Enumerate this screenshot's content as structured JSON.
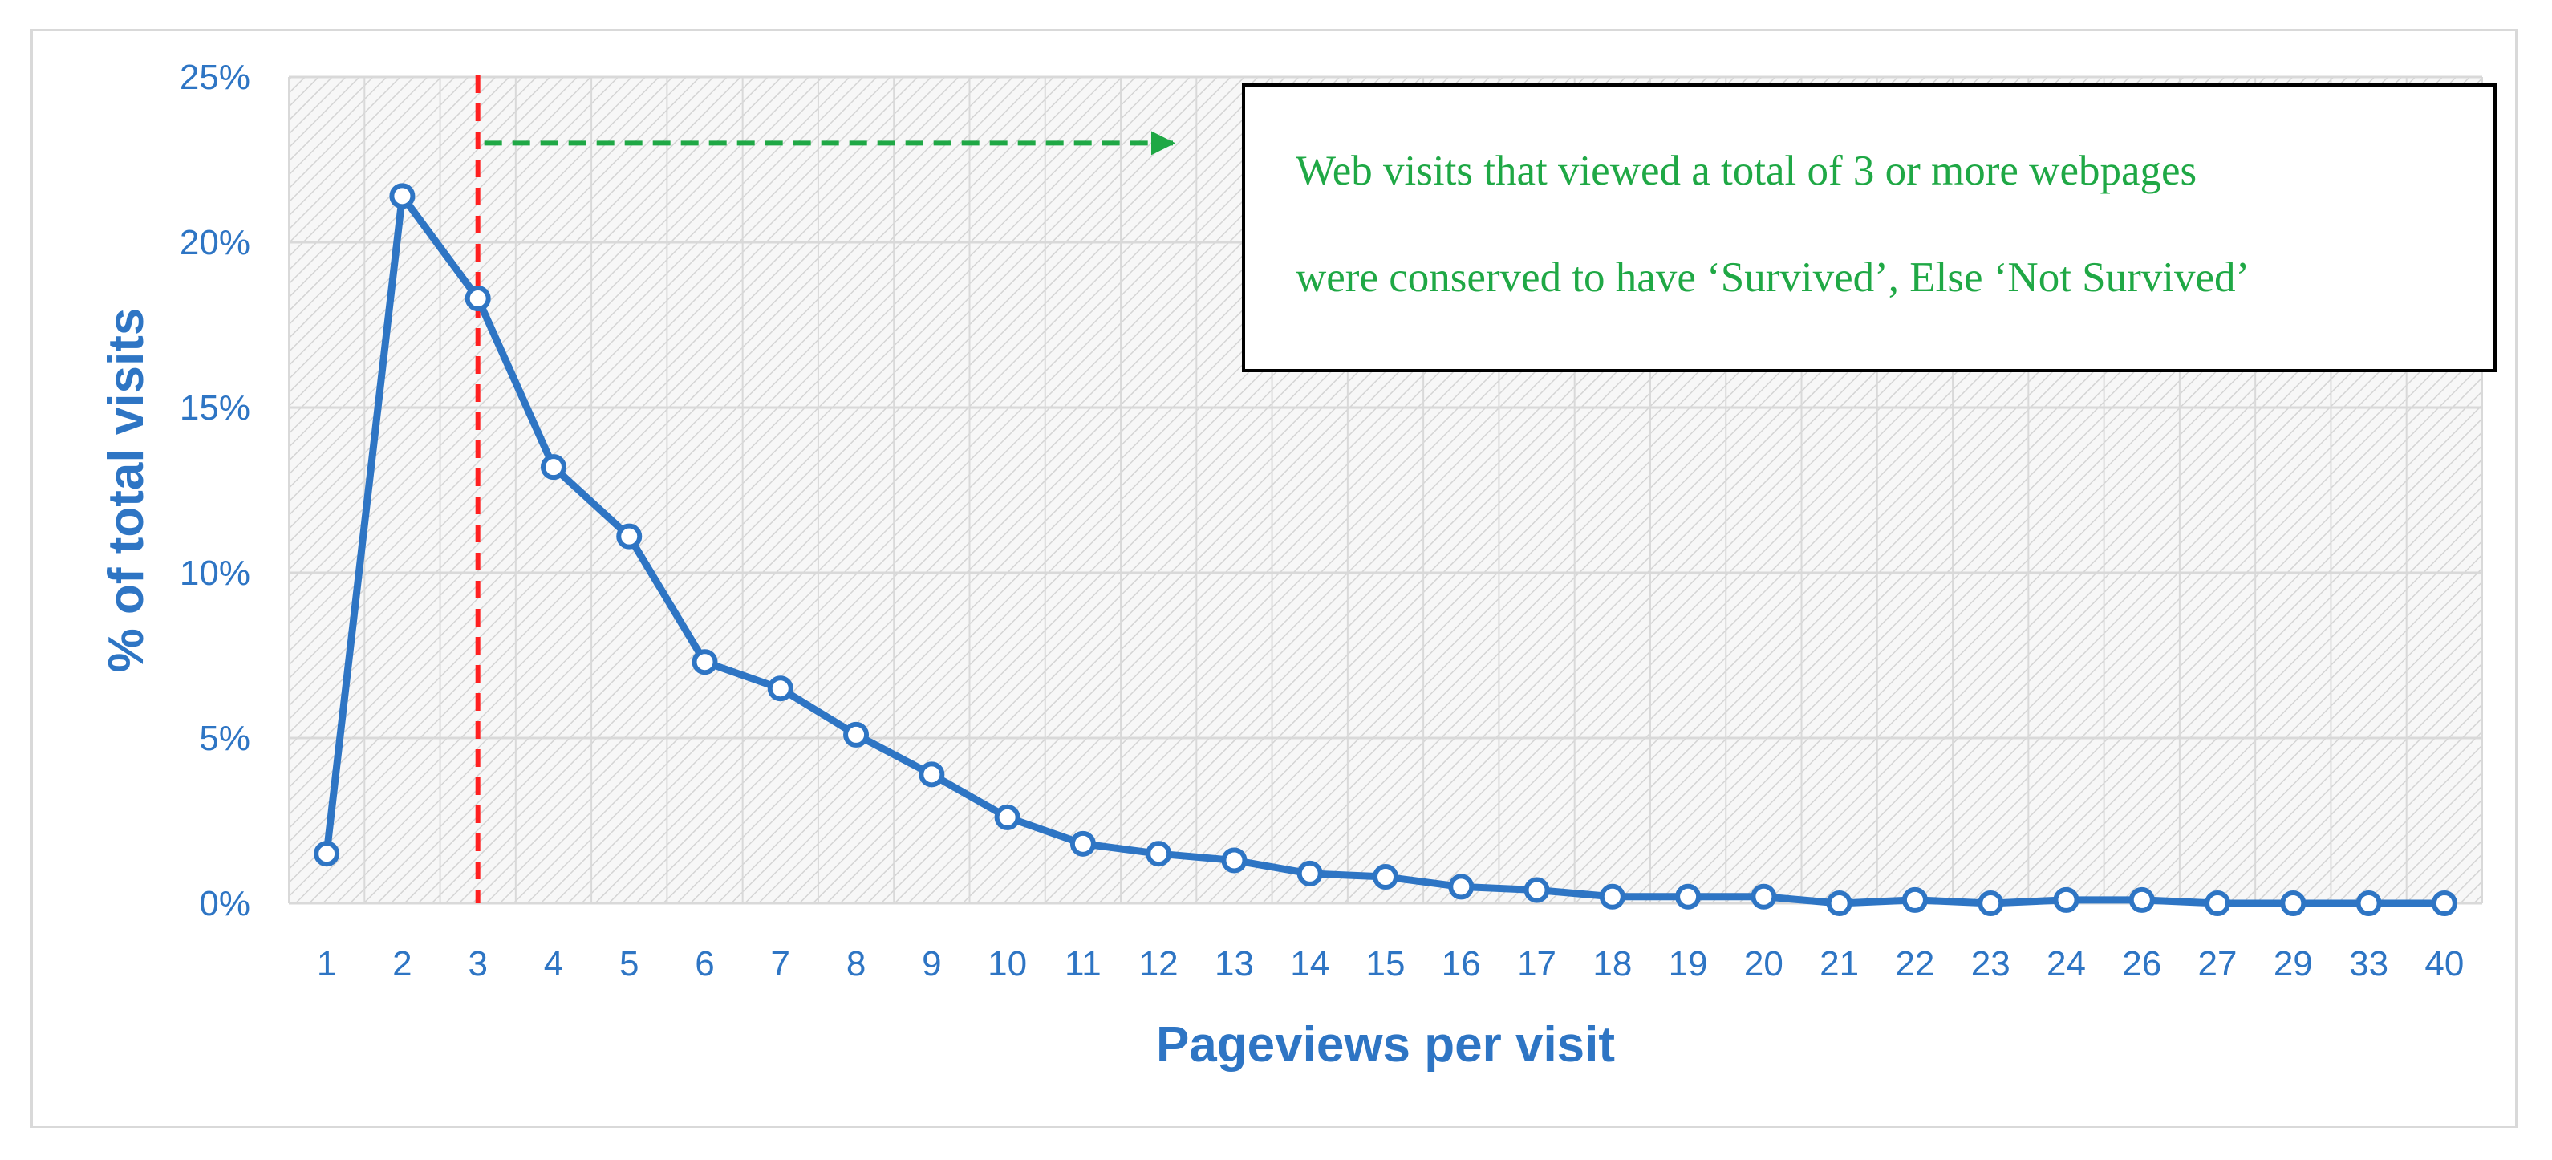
{
  "chart_data": {
    "type": "line",
    "title": "",
    "xlabel": "Pageviews per visit",
    "ylabel": "% of total visits",
    "categories": [
      "1",
      "2",
      "3",
      "4",
      "5",
      "6",
      "7",
      "8",
      "9",
      "10",
      "11",
      "12",
      "13",
      "14",
      "15",
      "16",
      "17",
      "18",
      "19",
      "20",
      "21",
      "22",
      "23",
      "24",
      "26",
      "27",
      "29",
      "33",
      "40"
    ],
    "series": [
      {
        "values": [
          1.5,
          21.4,
          18.3,
          13.2,
          11.1,
          7.3,
          6.5,
          5.1,
          3.9,
          2.6,
          1.8,
          1.5,
          1.3,
          0.9,
          0.8,
          0.5,
          0.4,
          0.2,
          0.2,
          0.2,
          0.0,
          0.1,
          0.0,
          0.1,
          0.1,
          0.0,
          0.0,
          0.0,
          0.0
        ]
      }
    ],
    "ylim": [
      0,
      25
    ],
    "yticks": [
      0,
      5,
      10,
      15,
      20,
      25
    ],
    "ytick_labels": [
      "0%",
      "5%",
      "10%",
      "15%",
      "20%",
      "25%"
    ],
    "grid": true,
    "threshold_category": "3",
    "annotation": {
      "lines": [
        "Web visits that viewed a total of 3 or more webpages",
        "were conserved to have ‘Survived’, Else ‘Not Survived’"
      ]
    },
    "colors": {
      "series": "#2e75c4",
      "threshold": "#ff2020",
      "arrow": "#1fa845",
      "annotation_text": "#1fa845",
      "grid": "#d9d9d9"
    }
  }
}
